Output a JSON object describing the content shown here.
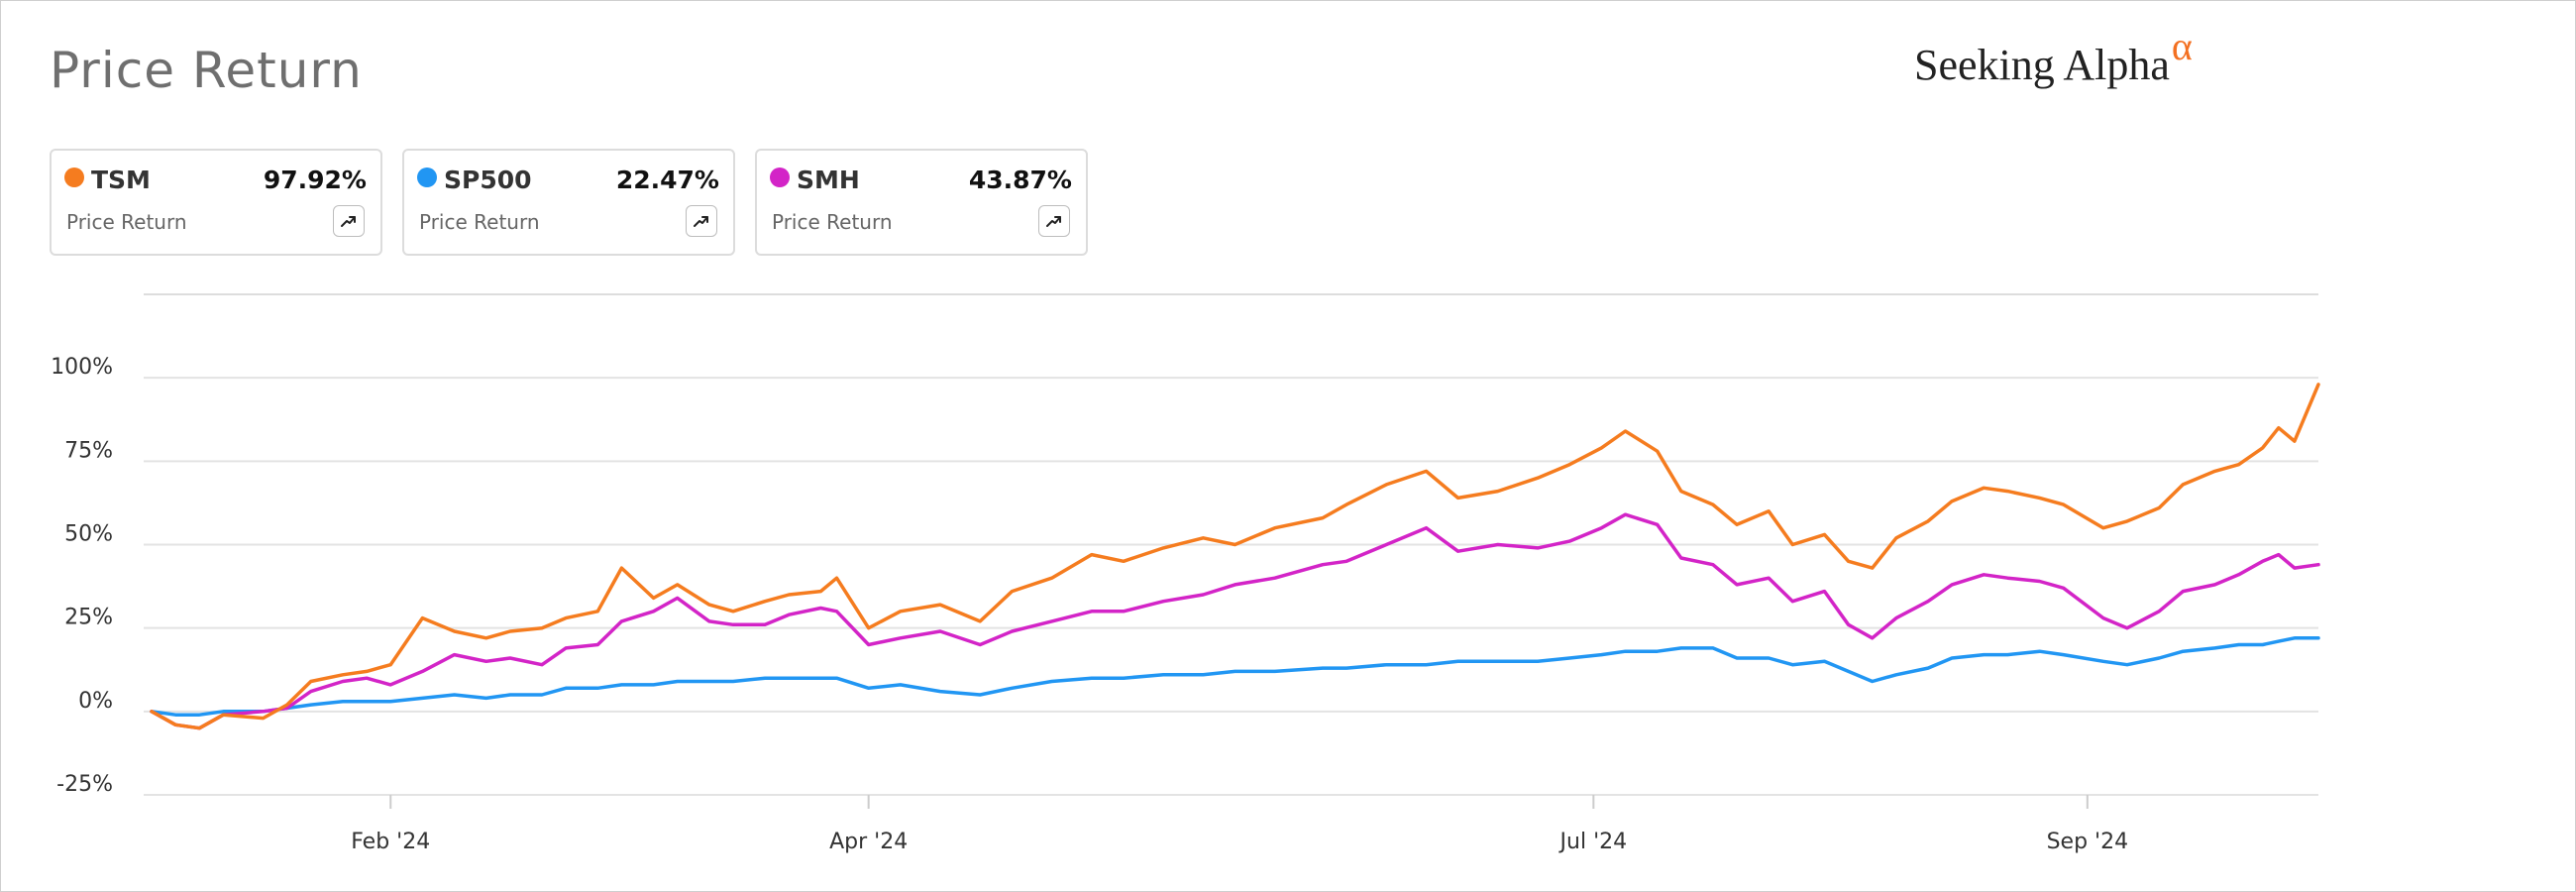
{
  "header": {
    "title": "Price Return",
    "brand_main": "Seeking Alpha",
    "brand_symbol": "α"
  },
  "cards": [
    {
      "ticker": "TSM",
      "value": "97.92%",
      "metric": "Price Return",
      "color": "#f57c1f",
      "icon": "trend-expand-icon"
    },
    {
      "ticker": "SP500",
      "value": "22.47%",
      "metric": "Price Return",
      "color": "#2196f3",
      "icon": "trend-expand-icon"
    },
    {
      "ticker": "SMH",
      "value": "43.87%",
      "metric": "Price Return",
      "color": "#d324c7",
      "icon": "trend-expand-icon"
    }
  ],
  "chart_data": {
    "type": "line",
    "x_range": [
      "2024-01-01",
      "2024-09-30"
    ],
    "y_range": [
      -0.25,
      1.25
    ],
    "y_ticks": [
      -0.25,
      0,
      0.25,
      0.5,
      0.75,
      1.0
    ],
    "y_tick_labels": [
      "-25%",
      "0%",
      "25%",
      "50%",
      "75%",
      "100%"
    ],
    "x_ticks": [
      "2024-02-01",
      "2024-04-01",
      "2024-07-01",
      "2024-09-01"
    ],
    "x_tick_labels": [
      "Feb '24",
      "Apr '24",
      "Jul '24",
      "Sep '24"
    ],
    "grid": "horizontal",
    "series": [
      {
        "name": "TSM",
        "color": "#f57c1f",
        "points": [
          [
            "2024-01-02",
            0.0
          ],
          [
            "2024-01-05",
            -0.04
          ],
          [
            "2024-01-08",
            -0.05
          ],
          [
            "2024-01-11",
            -0.01
          ],
          [
            "2024-01-16",
            -0.02
          ],
          [
            "2024-01-19",
            0.02
          ],
          [
            "2024-01-22",
            0.09
          ],
          [
            "2024-01-26",
            0.11
          ],
          [
            "2024-01-29",
            0.12
          ],
          [
            "2024-02-01",
            0.14
          ],
          [
            "2024-02-05",
            0.28
          ],
          [
            "2024-02-09",
            0.24
          ],
          [
            "2024-02-13",
            0.22
          ],
          [
            "2024-02-16",
            0.24
          ],
          [
            "2024-02-20",
            0.25
          ],
          [
            "2024-02-23",
            0.28
          ],
          [
            "2024-02-27",
            0.3
          ],
          [
            "2024-03-01",
            0.43
          ],
          [
            "2024-03-05",
            0.34
          ],
          [
            "2024-03-08",
            0.38
          ],
          [
            "2024-03-12",
            0.32
          ],
          [
            "2024-03-15",
            0.3
          ],
          [
            "2024-03-19",
            0.33
          ],
          [
            "2024-03-22",
            0.35
          ],
          [
            "2024-03-26",
            0.36
          ],
          [
            "2024-03-28",
            0.4
          ],
          [
            "2024-04-01",
            0.25
          ],
          [
            "2024-04-05",
            0.3
          ],
          [
            "2024-04-10",
            0.32
          ],
          [
            "2024-04-15",
            0.27
          ],
          [
            "2024-04-19",
            0.36
          ],
          [
            "2024-04-24",
            0.4
          ],
          [
            "2024-04-29",
            0.47
          ],
          [
            "2024-05-03",
            0.45
          ],
          [
            "2024-05-08",
            0.49
          ],
          [
            "2024-05-13",
            0.52
          ],
          [
            "2024-05-17",
            0.5
          ],
          [
            "2024-05-22",
            0.55
          ],
          [
            "2024-05-28",
            0.58
          ],
          [
            "2024-05-31",
            0.62
          ],
          [
            "2024-06-05",
            0.68
          ],
          [
            "2024-06-10",
            0.72
          ],
          [
            "2024-06-14",
            0.64
          ],
          [
            "2024-06-19",
            0.66
          ],
          [
            "2024-06-24",
            0.7
          ],
          [
            "2024-06-28",
            0.74
          ],
          [
            "2024-07-02",
            0.79
          ],
          [
            "2024-07-05",
            0.84
          ],
          [
            "2024-07-09",
            0.78
          ],
          [
            "2024-07-12",
            0.66
          ],
          [
            "2024-07-16",
            0.62
          ],
          [
            "2024-07-19",
            0.56
          ],
          [
            "2024-07-23",
            0.6
          ],
          [
            "2024-07-26",
            0.5
          ],
          [
            "2024-07-30",
            0.53
          ],
          [
            "2024-08-02",
            0.45
          ],
          [
            "2024-08-05",
            0.43
          ],
          [
            "2024-08-08",
            0.52
          ],
          [
            "2024-08-12",
            0.57
          ],
          [
            "2024-08-15",
            0.63
          ],
          [
            "2024-08-19",
            0.67
          ],
          [
            "2024-08-22",
            0.66
          ],
          [
            "2024-08-26",
            0.64
          ],
          [
            "2024-08-29",
            0.62
          ],
          [
            "2024-09-03",
            0.55
          ],
          [
            "2024-09-06",
            0.57
          ],
          [
            "2024-09-10",
            0.61
          ],
          [
            "2024-09-13",
            0.68
          ],
          [
            "2024-09-17",
            0.72
          ],
          [
            "2024-09-20",
            0.74
          ],
          [
            "2024-09-23",
            0.79
          ],
          [
            "2024-09-25",
            0.85
          ],
          [
            "2024-09-27",
            0.81
          ],
          [
            "2024-09-30",
            0.98
          ]
        ]
      },
      {
        "name": "SP500",
        "color": "#2196f3",
        "points": [
          [
            "2024-01-02",
            0.0
          ],
          [
            "2024-01-05",
            -0.01
          ],
          [
            "2024-01-08",
            -0.01
          ],
          [
            "2024-01-11",
            0.0
          ],
          [
            "2024-01-16",
            0.0
          ],
          [
            "2024-01-19",
            0.01
          ],
          [
            "2024-01-22",
            0.02
          ],
          [
            "2024-01-26",
            0.03
          ],
          [
            "2024-01-29",
            0.03
          ],
          [
            "2024-02-01",
            0.03
          ],
          [
            "2024-02-05",
            0.04
          ],
          [
            "2024-02-09",
            0.05
          ],
          [
            "2024-02-13",
            0.04
          ],
          [
            "2024-02-16",
            0.05
          ],
          [
            "2024-02-20",
            0.05
          ],
          [
            "2024-02-23",
            0.07
          ],
          [
            "2024-02-27",
            0.07
          ],
          [
            "2024-03-01",
            0.08
          ],
          [
            "2024-03-05",
            0.08
          ],
          [
            "2024-03-08",
            0.09
          ],
          [
            "2024-03-12",
            0.09
          ],
          [
            "2024-03-15",
            0.09
          ],
          [
            "2024-03-19",
            0.1
          ],
          [
            "2024-03-22",
            0.1
          ],
          [
            "2024-03-26",
            0.1
          ],
          [
            "2024-03-28",
            0.1
          ],
          [
            "2024-04-01",
            0.07
          ],
          [
            "2024-04-05",
            0.08
          ],
          [
            "2024-04-10",
            0.06
          ],
          [
            "2024-04-15",
            0.05
          ],
          [
            "2024-04-19",
            0.07
          ],
          [
            "2024-04-24",
            0.09
          ],
          [
            "2024-04-29",
            0.1
          ],
          [
            "2024-05-03",
            0.1
          ],
          [
            "2024-05-08",
            0.11
          ],
          [
            "2024-05-13",
            0.11
          ],
          [
            "2024-05-17",
            0.12
          ],
          [
            "2024-05-22",
            0.12
          ],
          [
            "2024-05-28",
            0.13
          ],
          [
            "2024-05-31",
            0.13
          ],
          [
            "2024-06-05",
            0.14
          ],
          [
            "2024-06-10",
            0.14
          ],
          [
            "2024-06-14",
            0.15
          ],
          [
            "2024-06-19",
            0.15
          ],
          [
            "2024-06-24",
            0.15
          ],
          [
            "2024-06-28",
            0.16
          ],
          [
            "2024-07-02",
            0.17
          ],
          [
            "2024-07-05",
            0.18
          ],
          [
            "2024-07-09",
            0.18
          ],
          [
            "2024-07-12",
            0.19
          ],
          [
            "2024-07-16",
            0.19
          ],
          [
            "2024-07-19",
            0.16
          ],
          [
            "2024-07-23",
            0.16
          ],
          [
            "2024-07-26",
            0.14
          ],
          [
            "2024-07-30",
            0.15
          ],
          [
            "2024-08-02",
            0.12
          ],
          [
            "2024-08-05",
            0.09
          ],
          [
            "2024-08-08",
            0.11
          ],
          [
            "2024-08-12",
            0.13
          ],
          [
            "2024-08-15",
            0.16
          ],
          [
            "2024-08-19",
            0.17
          ],
          [
            "2024-08-22",
            0.17
          ],
          [
            "2024-08-26",
            0.18
          ],
          [
            "2024-08-29",
            0.17
          ],
          [
            "2024-09-03",
            0.15
          ],
          [
            "2024-09-06",
            0.14
          ],
          [
            "2024-09-10",
            0.16
          ],
          [
            "2024-09-13",
            0.18
          ],
          [
            "2024-09-17",
            0.19
          ],
          [
            "2024-09-20",
            0.2
          ],
          [
            "2024-09-23",
            0.2
          ],
          [
            "2024-09-25",
            0.21
          ],
          [
            "2024-09-27",
            0.22
          ],
          [
            "2024-09-30",
            0.22
          ]
        ]
      },
      {
        "name": "SMH",
        "color": "#d324c7",
        "points": [
          [
            "2024-01-02",
            0.0
          ],
          [
            "2024-01-05",
            -0.04
          ],
          [
            "2024-01-08",
            -0.05
          ],
          [
            "2024-01-11",
            -0.01
          ],
          [
            "2024-01-16",
            0.0
          ],
          [
            "2024-01-19",
            0.01
          ],
          [
            "2024-01-22",
            0.06
          ],
          [
            "2024-01-26",
            0.09
          ],
          [
            "2024-01-29",
            0.1
          ],
          [
            "2024-02-01",
            0.08
          ],
          [
            "2024-02-05",
            0.12
          ],
          [
            "2024-02-09",
            0.17
          ],
          [
            "2024-02-13",
            0.15
          ],
          [
            "2024-02-16",
            0.16
          ],
          [
            "2024-02-20",
            0.14
          ],
          [
            "2024-02-23",
            0.19
          ],
          [
            "2024-02-27",
            0.2
          ],
          [
            "2024-03-01",
            0.27
          ],
          [
            "2024-03-05",
            0.3
          ],
          [
            "2024-03-08",
            0.34
          ],
          [
            "2024-03-12",
            0.27
          ],
          [
            "2024-03-15",
            0.26
          ],
          [
            "2024-03-19",
            0.26
          ],
          [
            "2024-03-22",
            0.29
          ],
          [
            "2024-03-26",
            0.31
          ],
          [
            "2024-03-28",
            0.3
          ],
          [
            "2024-04-01",
            0.2
          ],
          [
            "2024-04-05",
            0.22
          ],
          [
            "2024-04-10",
            0.24
          ],
          [
            "2024-04-15",
            0.2
          ],
          [
            "2024-04-19",
            0.24
          ],
          [
            "2024-04-24",
            0.27
          ],
          [
            "2024-04-29",
            0.3
          ],
          [
            "2024-05-03",
            0.3
          ],
          [
            "2024-05-08",
            0.33
          ],
          [
            "2024-05-13",
            0.35
          ],
          [
            "2024-05-17",
            0.38
          ],
          [
            "2024-05-22",
            0.4
          ],
          [
            "2024-05-28",
            0.44
          ],
          [
            "2024-05-31",
            0.45
          ],
          [
            "2024-06-05",
            0.5
          ],
          [
            "2024-06-10",
            0.55
          ],
          [
            "2024-06-14",
            0.48
          ],
          [
            "2024-06-19",
            0.5
          ],
          [
            "2024-06-24",
            0.49
          ],
          [
            "2024-06-28",
            0.51
          ],
          [
            "2024-07-02",
            0.55
          ],
          [
            "2024-07-05",
            0.59
          ],
          [
            "2024-07-09",
            0.56
          ],
          [
            "2024-07-12",
            0.46
          ],
          [
            "2024-07-16",
            0.44
          ],
          [
            "2024-07-19",
            0.38
          ],
          [
            "2024-07-23",
            0.4
          ],
          [
            "2024-07-26",
            0.33
          ],
          [
            "2024-07-30",
            0.36
          ],
          [
            "2024-08-02",
            0.26
          ],
          [
            "2024-08-05",
            0.22
          ],
          [
            "2024-08-08",
            0.28
          ],
          [
            "2024-08-12",
            0.33
          ],
          [
            "2024-08-15",
            0.38
          ],
          [
            "2024-08-19",
            0.41
          ],
          [
            "2024-08-22",
            0.4
          ],
          [
            "2024-08-26",
            0.39
          ],
          [
            "2024-08-29",
            0.37
          ],
          [
            "2024-09-03",
            0.28
          ],
          [
            "2024-09-06",
            0.25
          ],
          [
            "2024-09-10",
            0.3
          ],
          [
            "2024-09-13",
            0.36
          ],
          [
            "2024-09-17",
            0.38
          ],
          [
            "2024-09-20",
            0.41
          ],
          [
            "2024-09-23",
            0.45
          ],
          [
            "2024-09-25",
            0.47
          ],
          [
            "2024-09-27",
            0.43
          ],
          [
            "2024-09-30",
            0.44
          ]
        ]
      }
    ]
  }
}
